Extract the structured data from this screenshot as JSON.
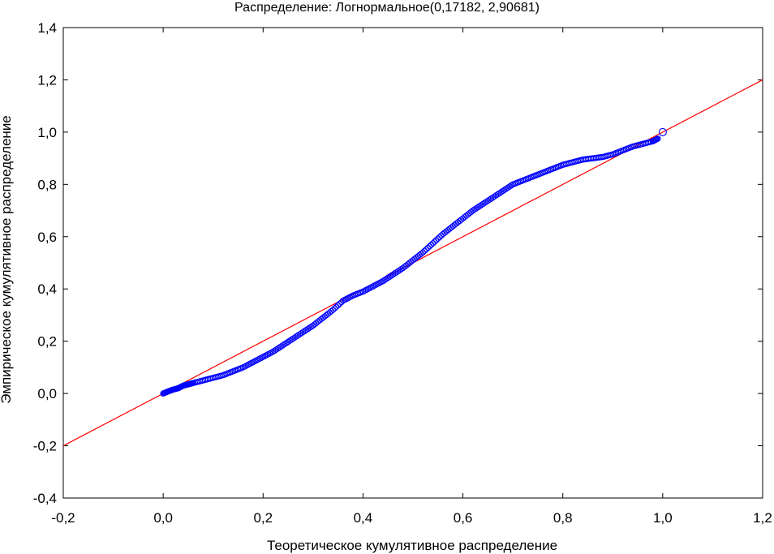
{
  "chart_data": {
    "type": "scatter",
    "title": "Распределение: Логнормальное(0,17182, 2,90681)",
    "xlabel": "Теоретическое кумулятивное распределение",
    "ylabel": "Эмпирическое кумулятивное распределение",
    "xlim": [
      -0.2,
      1.2
    ],
    "ylim": [
      -0.4,
      1.4
    ],
    "x_ticks": [
      -0.2,
      0.0,
      0.2,
      0.4,
      0.6,
      0.8,
      1.0,
      1.2
    ],
    "y_ticks": [
      -0.4,
      -0.2,
      0.0,
      0.2,
      0.4,
      0.6,
      0.8,
      1.0,
      1.2,
      1.4
    ],
    "x_tick_labels": [
      "-0,2",
      "0,0",
      "0,2",
      "0,4",
      "0,6",
      "0,8",
      "1,0",
      "1,2"
    ],
    "y_tick_labels": [
      "-0,4",
      "-0,2",
      "0,0",
      "0,2",
      "0,4",
      "0,6",
      "0,8",
      "1,0",
      "1,2",
      "1,4"
    ],
    "grid": false,
    "colors": {
      "points": "#0000ff",
      "reference_line": "#ff0000",
      "axes": "#000000"
    },
    "reference_line": {
      "x": [
        -0.2,
        1.2
      ],
      "y": [
        -0.2,
        1.2
      ]
    },
    "series": [
      {
        "marker": "circle",
        "x": [
          0.0,
          0.01,
          0.02,
          0.03,
          0.04,
          0.05,
          0.06,
          0.08,
          0.1,
          0.12,
          0.14,
          0.16,
          0.18,
          0.2,
          0.22,
          0.24,
          0.26,
          0.28,
          0.3,
          0.32,
          0.34,
          0.36,
          0.38,
          0.4,
          0.42,
          0.44,
          0.46,
          0.48,
          0.5,
          0.52,
          0.54,
          0.56,
          0.58,
          0.6,
          0.62,
          0.64,
          0.66,
          0.68,
          0.7,
          0.72,
          0.74,
          0.76,
          0.78,
          0.8,
          0.82,
          0.84,
          0.86,
          0.88,
          0.9,
          0.92,
          0.94,
          0.96,
          0.98,
          0.99,
          1.0
        ],
        "y": [
          0.0,
          0.008,
          0.015,
          0.02,
          0.03,
          0.035,
          0.04,
          0.05,
          0.06,
          0.07,
          0.085,
          0.1,
          0.12,
          0.14,
          0.16,
          0.185,
          0.21,
          0.235,
          0.26,
          0.29,
          0.32,
          0.355,
          0.375,
          0.39,
          0.41,
          0.43,
          0.455,
          0.48,
          0.51,
          0.54,
          0.575,
          0.61,
          0.64,
          0.67,
          0.7,
          0.725,
          0.75,
          0.775,
          0.8,
          0.815,
          0.83,
          0.845,
          0.86,
          0.875,
          0.885,
          0.895,
          0.9,
          0.905,
          0.915,
          0.93,
          0.945,
          0.955,
          0.965,
          0.975,
          1.0
        ]
      }
    ]
  }
}
